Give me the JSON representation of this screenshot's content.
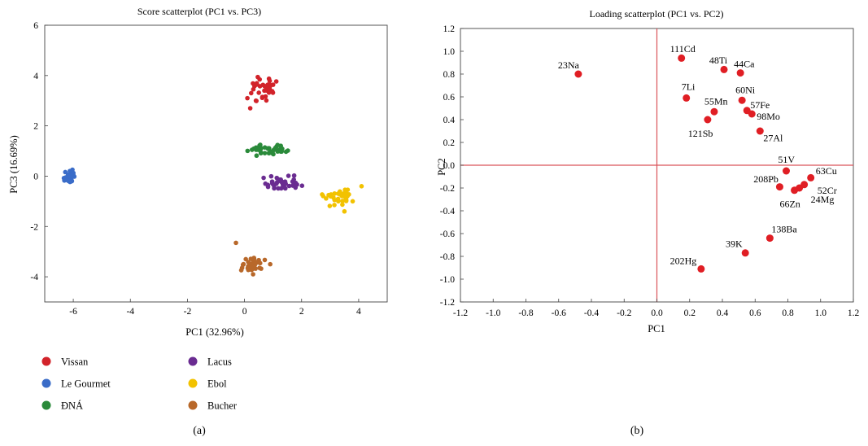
{
  "chart_data": [
    {
      "type": "scatter",
      "title": "Score scatterplot (PC1 vs. PC3)",
      "xlabel": "PC1 (32.96%)",
      "ylabel": "PC3 (16.69%)",
      "xlim": [
        -7,
        5
      ],
      "ylim": [
        -5,
        6
      ],
      "xticks": [
        -6,
        -4,
        -2,
        0,
        2,
        4
      ],
      "yticks": [
        -4,
        -2,
        0,
        2,
        4,
        6
      ],
      "grid": false,
      "legend": "bottom",
      "panel_label": "(a)",
      "series": [
        {
          "name": "Vissan",
          "color": "#d2232a",
          "center": [
            0.7,
            3.5
          ],
          "spread": [
            0.35,
            0.35
          ],
          "n": 32,
          "extra": [
            [
              0.2,
              2.7
            ],
            [
              0.4,
              3.0
            ],
            [
              0.1,
              3.1
            ]
          ]
        },
        {
          "name": "Le Gourmet",
          "color": "#3a6cc8",
          "center": [
            -6.1,
            0.0
          ],
          "spread": [
            0.15,
            0.16
          ],
          "n": 40,
          "extra": []
        },
        {
          "name": "ĐNÁ",
          "color": "#2a8a3a",
          "center": [
            0.9,
            1.05
          ],
          "spread": [
            0.45,
            0.15
          ],
          "n": 40,
          "extra": []
        },
        {
          "name": "Lacus",
          "color": "#6a2c91",
          "center": [
            1.3,
            -0.3
          ],
          "spread": [
            0.45,
            0.18
          ],
          "n": 40,
          "extra": []
        },
        {
          "name": "Ebol",
          "color": "#f2c200",
          "center": [
            3.3,
            -0.8
          ],
          "spread": [
            0.4,
            0.22
          ],
          "n": 32,
          "extra": [
            [
              4.1,
              -0.4
            ],
            [
              3.5,
              -1.4
            ]
          ]
        },
        {
          "name": "Bucher",
          "color": "#b8682a",
          "center": [
            0.3,
            -3.5
          ],
          "spread": [
            0.25,
            0.18
          ],
          "n": 34,
          "extra": [
            [
              -0.3,
              -2.65
            ],
            [
              0.9,
              -3.5
            ],
            [
              0.3,
              -3.9
            ]
          ]
        }
      ]
    },
    {
      "type": "scatter",
      "title": "Loading scatterplot (PC1 vs. PC2)",
      "xlabel": "PC1",
      "ylabel": "PC2",
      "xlim": [
        -1.2,
        1.2
      ],
      "ylim": [
        -1.2,
        1.2
      ],
      "xticks": [
        "-1.2",
        "-1.0",
        "-0.8",
        "-0.6",
        "-0.4",
        "-0.2",
        "0.0",
        "0.2",
        "0.4",
        "0.6",
        "0.8",
        "1.0",
        "1.2"
      ],
      "yticks": [
        "1.2",
        "1.0",
        "0.8",
        "0.6",
        "0.4",
        "0.2",
        "0.0",
        "-0.2",
        "-0.4",
        "-0.6",
        "-0.8",
        "-1.0",
        "-1.2"
      ],
      "grid": false,
      "reference_lines": {
        "x": 0,
        "y": 0,
        "color": "#d9535a"
      },
      "point_color": "#e01e24",
      "panel_label": "(b)",
      "points": [
        {
          "label": "23Na",
          "x": -0.48,
          "y": 0.8,
          "lx": -0.06,
          "ly": 0.08,
          "anchor": "middle"
        },
        {
          "label": "111Cd",
          "x": 0.15,
          "y": 0.94,
          "lx": -0.07,
          "ly": 0.08,
          "anchor": "start"
        },
        {
          "label": "48Ti",
          "x": 0.41,
          "y": 0.84,
          "lx": -0.09,
          "ly": 0.08,
          "anchor": "start"
        },
        {
          "label": "44Ca",
          "x": 0.51,
          "y": 0.81,
          "lx": -0.04,
          "ly": 0.08,
          "anchor": "start"
        },
        {
          "label": "7Li",
          "x": 0.18,
          "y": 0.59,
          "lx": -0.03,
          "ly": 0.1,
          "anchor": "start"
        },
        {
          "label": "60Ni",
          "x": 0.52,
          "y": 0.57,
          "lx": -0.04,
          "ly": 0.09,
          "anchor": "start"
        },
        {
          "label": "55Mn",
          "x": 0.35,
          "y": 0.47,
          "lx": -0.06,
          "ly": 0.09,
          "anchor": "start"
        },
        {
          "label": "57Fe",
          "x": 0.55,
          "y": 0.48,
          "lx": 0.02,
          "ly": 0.05,
          "anchor": "start"
        },
        {
          "label": "98Mo",
          "x": 0.58,
          "y": 0.45,
          "lx": 0.03,
          "ly": -0.02,
          "anchor": "start"
        },
        {
          "label": "121Sb",
          "x": 0.31,
          "y": 0.4,
          "lx": -0.12,
          "ly": -0.12,
          "anchor": "start"
        },
        {
          "label": "27Al",
          "x": 0.63,
          "y": 0.3,
          "lx": 0.02,
          "ly": -0.06,
          "anchor": "start"
        },
        {
          "label": "51V",
          "x": 0.79,
          "y": -0.05,
          "lx": -0.05,
          "ly": 0.1,
          "anchor": "start"
        },
        {
          "label": "63Cu",
          "x": 0.94,
          "y": -0.11,
          "lx": 0.03,
          "ly": 0.06,
          "anchor": "start"
        },
        {
          "label": "208Pb",
          "x": 0.75,
          "y": -0.19,
          "lx": -0.16,
          "ly": 0.07,
          "anchor": "start"
        },
        {
          "label": "52Cr",
          "x": 0.9,
          "y": -0.17,
          "lx": 0.08,
          "ly": -0.05,
          "anchor": "start"
        },
        {
          "label": "24Mg",
          "x": 0.87,
          "y": -0.2,
          "lx": 0.07,
          "ly": -0.1,
          "anchor": "start"
        },
        {
          "label": "66Zn",
          "x": 0.84,
          "y": -0.22,
          "lx": -0.09,
          "ly": -0.12,
          "anchor": "start"
        },
        {
          "label": "138Ba",
          "x": 0.69,
          "y": -0.64,
          "lx": 0.01,
          "ly": 0.08,
          "anchor": "start"
        },
        {
          "label": "39K",
          "x": 0.54,
          "y": -0.77,
          "lx": -0.12,
          "ly": 0.08,
          "anchor": "start"
        },
        {
          "label": "202Hg",
          "x": 0.27,
          "y": -0.91,
          "lx": -0.19,
          "ly": 0.07,
          "anchor": "start"
        }
      ]
    }
  ]
}
